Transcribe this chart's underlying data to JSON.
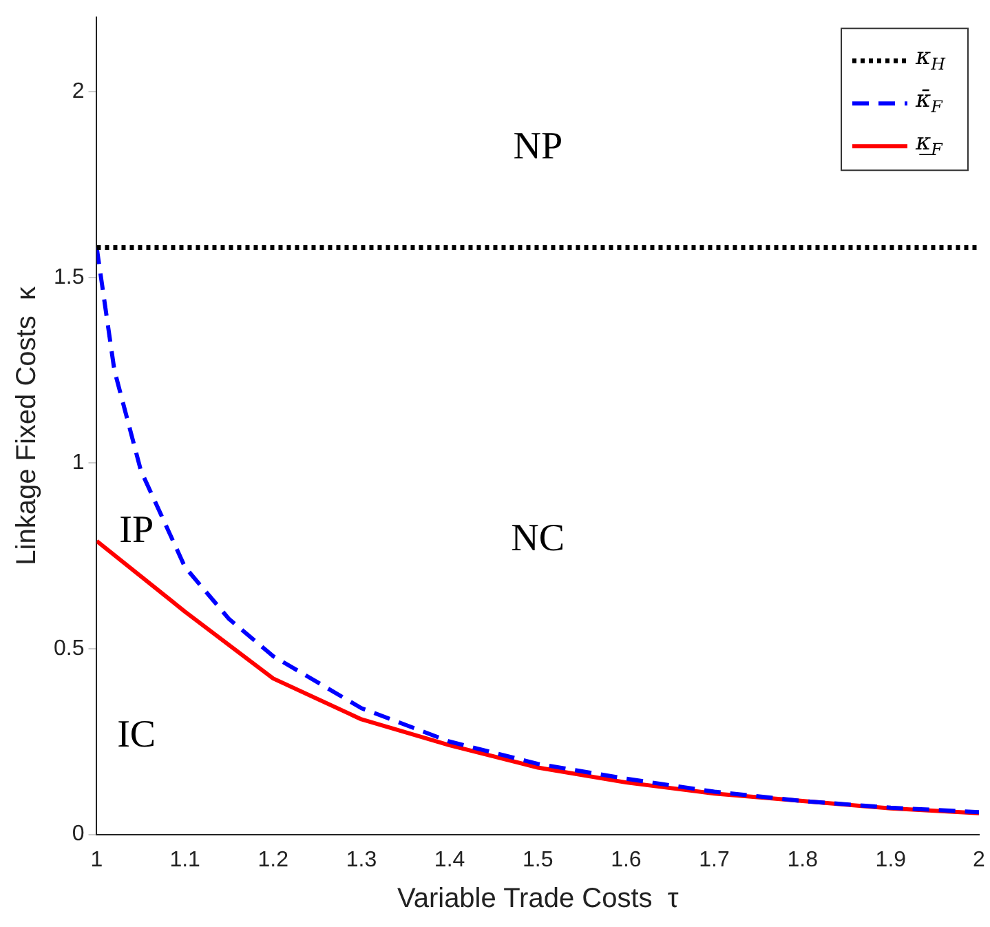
{
  "chart_data": {
    "type": "line",
    "xlabel": "Variable Trade Costs  τ",
    "ylabel": "Linkage Fixed Costs  κ",
    "xlim": [
      1,
      2
    ],
    "xticks": [
      1,
      1.1,
      1.2,
      1.3,
      1.4,
      1.5,
      1.6,
      1.7,
      1.8,
      1.9,
      2
    ],
    "ylim": [
      0,
      2.2
    ],
    "yticks": [
      0,
      0.5,
      1,
      1.5,
      2
    ],
    "grid": false,
    "legend": "top right",
    "marker": "none",
    "series": [
      {
        "name": "κ$_{H}$",
        "color": "#000000",
        "line_style": "dotted",
        "x": [
          1,
          2
        ],
        "values": [
          1.58,
          1.58
        ]
      },
      {
        "name": "κ̄$_{F}$",
        "color": "#0000ff",
        "line_style": "dashed",
        "x": [
          1,
          1.02,
          1.05,
          1.1,
          1.15,
          1.2,
          1.3,
          1.4,
          1.5,
          1.6,
          1.7,
          1.8,
          1.9,
          2
        ],
        "values": [
          1.58,
          1.25,
          0.98,
          0.72,
          0.58,
          0.48,
          0.34,
          0.25,
          0.19,
          0.15,
          0.115,
          0.09,
          0.072,
          0.06
        ]
      },
      {
        "name": "κ̲$_{F}$",
        "color": "#ff0000",
        "line_style": "solid",
        "x": [
          1,
          1.1,
          1.2,
          1.3,
          1.4,
          1.5,
          1.6,
          1.7,
          1.8,
          1.9,
          2
        ],
        "values": [
          0.79,
          0.6,
          0.42,
          0.31,
          0.24,
          0.18,
          0.14,
          0.11,
          0.09,
          0.07,
          0.057
        ]
      }
    ],
    "annotations": [
      "NP",
      "IP",
      "NC",
      "IC"
    ]
  }
}
